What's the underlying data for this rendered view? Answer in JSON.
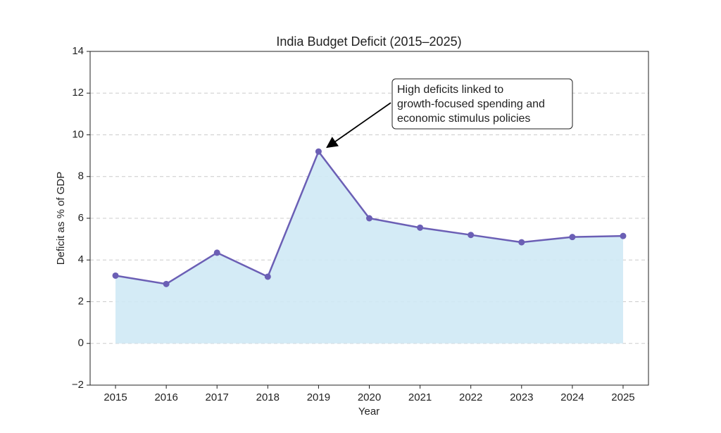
{
  "chart_data": {
    "type": "area-line",
    "title": "India Budget Deficit (2015–2025)",
    "x_label": "Year",
    "y_label": "Deficit as % of GDP",
    "x": [
      2015,
      2016,
      2017,
      2018,
      2019,
      2020,
      2021,
      2022,
      2023,
      2024,
      2025
    ],
    "values": [
      3.25,
      2.85,
      4.35,
      3.2,
      9.2,
      6.0,
      5.55,
      5.2,
      4.85,
      5.1,
      5.15
    ],
    "color": "#6b5fb5",
    "fill_color": "#cfe9f5",
    "xlim": [
      2014.5,
      2025.5
    ],
    "xticks": [
      2015,
      2016,
      2017,
      2018,
      2019,
      2020,
      2021,
      2022,
      2023,
      2024,
      2025
    ],
    "ylim": [
      -2,
      14
    ],
    "yticks": [
      {
        "value": -2,
        "label": "−2"
      },
      0,
      2,
      4,
      6,
      8,
      10,
      12,
      14
    ],
    "grid": true,
    "annotation": {
      "lines": [
        "High deficits linked to",
        "growth-focused spending and",
        "economic stimulus policies"
      ],
      "xy": [
        2019,
        9.2
      ]
    }
  }
}
